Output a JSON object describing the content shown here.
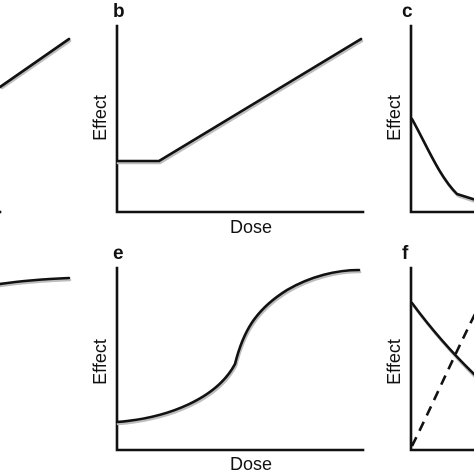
{
  "panels": {
    "a": {
      "letter": ""
    },
    "b": {
      "letter": "b",
      "ylabel": "Effect",
      "xlabel": "Dose"
    },
    "c": {
      "letter": "c",
      "ylabel": "Effect"
    },
    "d": {
      "letter": ""
    },
    "e": {
      "letter": "e",
      "ylabel": "Effect",
      "xlabel": "Dose"
    },
    "f": {
      "letter": "f",
      "ylabel": "Effect"
    }
  },
  "colors": {
    "line": "#111111",
    "shadow": "#bdbdbd"
  }
}
